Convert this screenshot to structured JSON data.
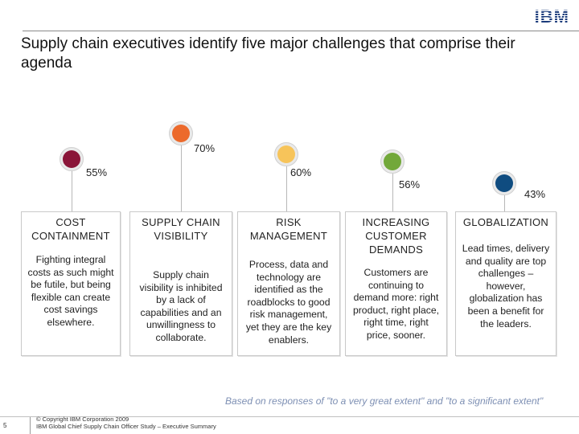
{
  "header": {
    "logo_text": "IBM",
    "title": "Supply chain executives identify five major challenges that comprise their agenda"
  },
  "challenges": [
    {
      "title": "COST CONTAINMENT",
      "percent": "55%",
      "color": "#8a1538",
      "body": "Fighting integral costs as such might be futile, but being flexible can create cost savings elsewhere."
    },
    {
      "title": "SUPPLY CHAIN VISIBILITY",
      "percent": "70%",
      "color": "#ec6a2c",
      "body": "Supply chain visibility is inhibited by a lack of capabilities and an unwillingness to collaborate."
    },
    {
      "title": "RISK MANAGEMENT",
      "percent": "60%",
      "color": "#f7c45a",
      "body": "Process, data and technology are identified as the roadblocks to good risk management, yet they are the key enablers."
    },
    {
      "title": "INCREASING CUSTOMER DEMANDS",
      "percent": "56%",
      "color": "#72a83a",
      "body": "Customers are continuing to demand more:  right product, right place, right time, right price, sooner."
    },
    {
      "title": "GLOBALIZATION",
      "percent": "43%",
      "color": "#0f4c80",
      "body": "Lead times, delivery and quality are top challenges – however, globalization has been a benefit for the leaders."
    }
  ],
  "footnote": "Based on responses of \"to a very great extent\" and \"to a significant extent\"",
  "footer": {
    "page_number": "5",
    "copyright": "© Copyright IBM Corporation 2009",
    "study": "IBM Global Chief Supply Chain Officer Study – Executive Summary"
  }
}
